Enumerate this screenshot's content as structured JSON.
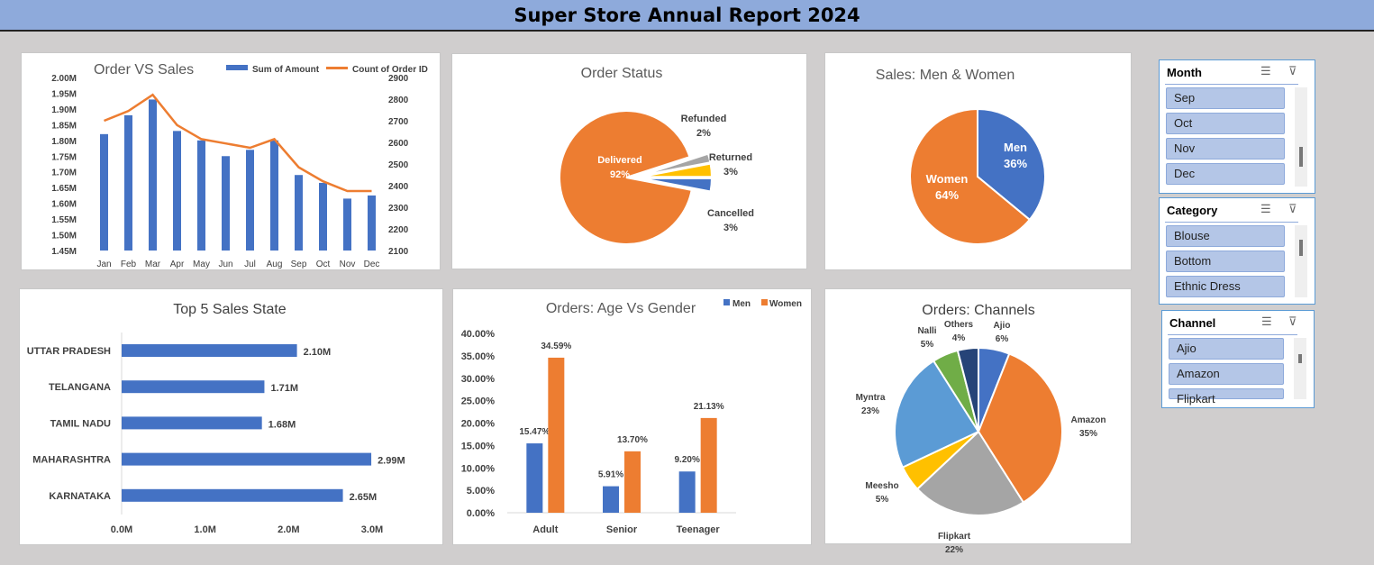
{
  "report_title": "Super Store Annual Report 2024",
  "colors": {
    "blue": "#4472c4",
    "orange": "#ed7d31",
    "gray": "#a5a5a5",
    "yellow": "#ffc000",
    "light_blue": "#5b9bd5",
    "green": "#70ad47",
    "navy": "#264478"
  },
  "chart_data": [
    {
      "id": "order_vs_sales",
      "type": "bar",
      "title": "Order VS Sales",
      "categories": [
        "Jan",
        "Feb",
        "Mar",
        "Apr",
        "May",
        "Jun",
        "Jul",
        "Aug",
        "Sep",
        "Oct",
        "Nov",
        "Dec"
      ],
      "series": [
        {
          "name": "Sum of Amount",
          "type": "bar",
          "axis": "left",
          "values": [
            1.82,
            1.88,
            1.93,
            1.83,
            1.8,
            1.75,
            1.77,
            1.8,
            1.69,
            1.665,
            1.615,
            1.625
          ]
        },
        {
          "name": "Count of Order ID",
          "type": "line",
          "axis": "right",
          "values": [
            2700,
            2745,
            2820,
            2680,
            2615,
            2595,
            2575,
            2615,
            2485,
            2420,
            2375,
            2375
          ]
        }
      ],
      "left_ticks": [
        "2.00M",
        "1.95M",
        "1.90M",
        "1.85M",
        "1.80M",
        "1.75M",
        "1.70M",
        "1.65M",
        "1.60M",
        "1.55M",
        "1.50M",
        "1.45M"
      ],
      "right_ticks": [
        "2900",
        "2800",
        "2700",
        "2600",
        "2500",
        "2400",
        "2300",
        "2200",
        "2100"
      ],
      "ylim_left": [
        1.45,
        2.0
      ],
      "ylim_right": [
        2100,
        2900
      ],
      "legend": "top-right"
    },
    {
      "id": "order_status",
      "type": "pie",
      "title": "Order Status",
      "slices": [
        {
          "label": "Delivered",
          "value": 92,
          "display": "92%"
        },
        {
          "label": "Refunded",
          "value": 2,
          "display": "2%"
        },
        {
          "label": "Returned",
          "value": 3,
          "display": "3%"
        },
        {
          "label": "Cancelled",
          "value": 3,
          "display": "3%"
        }
      ]
    },
    {
      "id": "sales_men_women",
      "type": "pie",
      "title": "Sales: Men & Women",
      "slices": [
        {
          "label": "Men",
          "value": 36,
          "display": "36%"
        },
        {
          "label": "Women",
          "value": 64,
          "display": "64%"
        }
      ]
    },
    {
      "id": "top5_state",
      "type": "bar",
      "orientation": "horizontal",
      "title": "Top 5 Sales State",
      "categories": [
        "UTTAR PRADESH",
        "TELANGANA",
        "TAMIL NADU",
        "MAHARASHTRA",
        "KARNATAKA"
      ],
      "values": [
        2.1,
        1.71,
        1.68,
        2.99,
        2.65
      ],
      "value_labels": [
        "2.10M",
        "1.71M",
        "1.68M",
        "2.99M",
        "2.65M"
      ],
      "x_ticks": [
        "0.0M",
        "1.0M",
        "2.0M",
        "3.0M"
      ],
      "xlim": [
        0,
        3.0
      ]
    },
    {
      "id": "age_vs_gender",
      "type": "bar",
      "title": "Orders: Age Vs Gender",
      "categories": [
        "Adult",
        "Senior",
        "Teenager"
      ],
      "series": [
        {
          "name": "Men",
          "values": [
            15.47,
            5.91,
            9.2
          ],
          "labels": [
            "15.47%",
            "5.91%",
            "9.20%"
          ]
        },
        {
          "name": "Women",
          "values": [
            34.59,
            13.7,
            21.13
          ],
          "labels": [
            "34.59%",
            "13.70%",
            "21.13%"
          ]
        }
      ],
      "y_ticks": [
        "40.00%",
        "35.00%",
        "30.00%",
        "25.00%",
        "20.00%",
        "15.00%",
        "10.00%",
        "5.00%",
        "0.00%"
      ],
      "ylim": [
        0,
        40
      ],
      "legend": "top-right"
    },
    {
      "id": "channels",
      "type": "pie",
      "title": "Orders: Channels",
      "slices": [
        {
          "label": "Ajio",
          "value": 6,
          "display": "6%"
        },
        {
          "label": "Amazon",
          "value": 35,
          "display": "35%"
        },
        {
          "label": "Flipkart",
          "value": 22,
          "display": "22%"
        },
        {
          "label": "Meesho",
          "value": 5,
          "display": "5%"
        },
        {
          "label": "Myntra",
          "value": 23,
          "display": "23%"
        },
        {
          "label": "Nalli",
          "value": 5,
          "display": "5%"
        },
        {
          "label": "Others",
          "value": 4,
          "display": "4%"
        }
      ]
    }
  ],
  "slicers": [
    {
      "title": "Month",
      "items": [
        "Sep",
        "Oct",
        "Nov",
        "Dec"
      ]
    },
    {
      "title": "Category",
      "items": [
        "Blouse",
        "Bottom",
        "Ethnic Dress"
      ]
    },
    {
      "title": "Channel",
      "items": [
        "Ajio",
        "Amazon",
        "Flipkart"
      ]
    }
  ],
  "slicer_icons": {
    "multiselect": "multi-select-icon",
    "clear": "clear-filter-icon"
  }
}
